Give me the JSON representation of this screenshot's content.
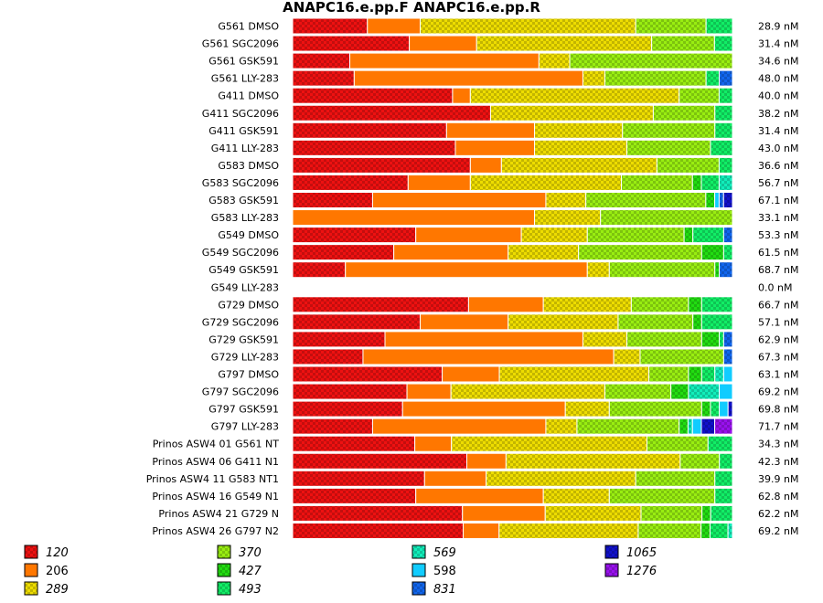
{
  "chart_data": {
    "type": "bar",
    "orientation": "horizontal",
    "stacked": true,
    "normalized": true,
    "title": "ANAPC16.e.pp.F  ANAPC16.e.pp.R",
    "units": "nM",
    "segments": [
      {
        "name": "120",
        "color": "#ee1111",
        "italic": true,
        "pattern": "check"
      },
      {
        "name": "206",
        "color": "#ff7700",
        "italic": false,
        "pattern": "solid"
      },
      {
        "name": "289",
        "color": "#eedd00",
        "italic": true,
        "pattern": "check"
      },
      {
        "name": "370",
        "color": "#99ee11",
        "italic": true,
        "pattern": "check"
      },
      {
        "name": "427",
        "color": "#22dd11",
        "italic": true,
        "pattern": "check"
      },
      {
        "name": "493",
        "color": "#11ee66",
        "italic": true,
        "pattern": "check"
      },
      {
        "name": "569",
        "color": "#11eebb",
        "italic": true,
        "pattern": "check"
      },
      {
        "name": "598",
        "color": "#11ccff",
        "italic": false,
        "pattern": "solid"
      },
      {
        "name": "831",
        "color": "#1166ee",
        "italic": true,
        "pattern": "check"
      },
      {
        "name": "1065",
        "color": "#1111cc",
        "italic": true,
        "pattern": "check"
      },
      {
        "name": "1276",
        "color": "#9911ee",
        "italic": true,
        "pattern": "check"
      }
    ],
    "rows": [
      {
        "label": "G561 DMSO",
        "total": "28.9 nM",
        "values": [
          17,
          12,
          49,
          16,
          0,
          6,
          0,
          0,
          0,
          0,
          0
        ]
      },
      {
        "label": "G561 SGC2096",
        "total": "31.4 nM",
        "values": [
          26,
          15,
          39,
          14,
          0,
          4,
          0,
          0,
          0,
          0,
          0
        ]
      },
      {
        "label": "G561 GSK591",
        "total": "34.6 nM",
        "values": [
          13,
          43,
          7,
          37,
          0,
          0,
          0,
          0,
          0,
          0,
          0
        ]
      },
      {
        "label": "G561 LLY-283",
        "total": "48.0 nM",
        "values": [
          14,
          52,
          5,
          23,
          0,
          3,
          0,
          0,
          3,
          0,
          0
        ]
      },
      {
        "label": "G411 DMSO",
        "total": "40.0 nM",
        "values": [
          36,
          4,
          47,
          9,
          0,
          3,
          0,
          0,
          0,
          0,
          0
        ]
      },
      {
        "label": "G411 SGC2096",
        "total": "38.2 nM",
        "values": [
          45,
          0,
          37,
          14,
          0,
          4,
          0,
          0,
          0,
          0,
          0
        ]
      },
      {
        "label": "G411 GSK591",
        "total": "31.4 nM",
        "values": [
          35,
          20,
          20,
          21,
          0,
          4,
          0,
          0,
          0,
          0,
          0
        ]
      },
      {
        "label": "G411 LLY-283",
        "total": "43.0 nM",
        "values": [
          37,
          18,
          21,
          19,
          0,
          5,
          0,
          0,
          0,
          0,
          0
        ]
      },
      {
        "label": "G583 DMSO",
        "total": "36.6 nM",
        "values": [
          40,
          7,
          35,
          14,
          0,
          3,
          0,
          0,
          0,
          0,
          0
        ]
      },
      {
        "label": "G583 SGC2096",
        "total": "56.7 nM",
        "values": [
          26,
          14,
          34,
          16,
          2,
          4,
          3,
          0,
          0,
          0,
          0
        ]
      },
      {
        "label": "G583 GSK591",
        "total": "67.1 nM",
        "values": [
          18,
          39,
          9,
          27,
          2,
          0,
          0,
          1,
          1,
          2,
          0
        ]
      },
      {
        "label": "G583 LLY-283",
        "total": "33.1 nM",
        "values": [
          0,
          55,
          15,
          30,
          0,
          0,
          0,
          0,
          0,
          0,
          0
        ]
      },
      {
        "label": "G549 DMSO",
        "total": "53.3 nM",
        "values": [
          28,
          24,
          15,
          22,
          2,
          7,
          0,
          0,
          2,
          0,
          0
        ]
      },
      {
        "label": "G549 SGC2096",
        "total": "61.5 nM",
        "values": [
          23,
          26,
          16,
          28,
          5,
          2,
          0,
          0,
          0,
          0,
          0
        ]
      },
      {
        "label": "G549 GSK591",
        "total": "68.7 nM",
        "values": [
          12,
          55,
          5,
          24,
          1,
          0,
          0,
          0,
          3,
          0,
          0
        ]
      },
      {
        "label": "G549 LLY-283",
        "total": "0.0 nM",
        "values": [
          0,
          0,
          0,
          0,
          0,
          0,
          0,
          0,
          0,
          0,
          0
        ]
      },
      {
        "label": "G729 DMSO",
        "total": "66.7 nM",
        "values": [
          40,
          17,
          20,
          13,
          3,
          7,
          0,
          0,
          0,
          0,
          0
        ]
      },
      {
        "label": "G729 SGC2096",
        "total": "57.1 nM",
        "values": [
          29,
          20,
          25,
          17,
          2,
          7,
          0,
          0,
          0,
          0,
          0
        ]
      },
      {
        "label": "G729 GSK591",
        "total": "62.9 nM",
        "values": [
          21,
          45,
          10,
          17,
          4,
          1,
          0,
          0,
          2,
          0,
          0
        ]
      },
      {
        "label": "G729 LLY-283",
        "total": "67.3 nM",
        "values": [
          16,
          57,
          6,
          19,
          0,
          0,
          0,
          0,
          2,
          0,
          0
        ]
      },
      {
        "label": "G797 DMSO",
        "total": "63.1 nM",
        "values": [
          34,
          13,
          34,
          9,
          3,
          3,
          2,
          2,
          0,
          0,
          0
        ]
      },
      {
        "label": "G797 SGC2096",
        "total": "69.2 nM",
        "values": [
          26,
          10,
          35,
          15,
          4,
          0,
          7,
          3,
          0,
          0,
          0
        ]
      },
      {
        "label": "G797 GSK591",
        "total": "69.8 nM",
        "values": [
          25,
          37,
          10,
          21,
          2,
          2,
          0,
          2,
          0,
          1,
          0
        ]
      },
      {
        "label": "G797 LLY-283",
        "total": "71.7 nM",
        "values": [
          18,
          39,
          7,
          23,
          2,
          0,
          1,
          2,
          0,
          3,
          4
        ]
      },
      {
        "label": "Prinos ASW4 01 G561 NT",
        "total": "34.3 nM",
        "values": [
          30,
          9,
          48,
          15,
          0,
          6,
          0,
          0,
          0,
          0,
          0
        ]
      },
      {
        "label": "Prinos ASW4 06 G411 N1",
        "total": "42.3 nM",
        "values": [
          40,
          9,
          40,
          9,
          0,
          3,
          0,
          0,
          0,
          0,
          0
        ]
      },
      {
        "label": "Prinos ASW4 11 G583 NT1",
        "total": "39.9 nM",
        "values": [
          30,
          14,
          34,
          18,
          0,
          4,
          0,
          0,
          0,
          0,
          0
        ]
      },
      {
        "label": "Prinos ASW4 16 G549 N1",
        "total": "62.8 nM",
        "values": [
          28,
          29,
          15,
          24,
          0,
          4,
          0,
          0,
          0,
          0,
          0
        ]
      },
      {
        "label": "Prinos ASW4 21 G729 N",
        "total": "62.2 nM",
        "values": [
          39,
          19,
          22,
          14,
          2,
          5,
          0,
          0,
          0,
          0,
          0
        ]
      },
      {
        "label": "Prinos ASW4 26 G797 N2",
        "total": "69.2 nM",
        "values": [
          38,
          8,
          31,
          14,
          2,
          4,
          1,
          0,
          0,
          0,
          0
        ]
      }
    ]
  }
}
